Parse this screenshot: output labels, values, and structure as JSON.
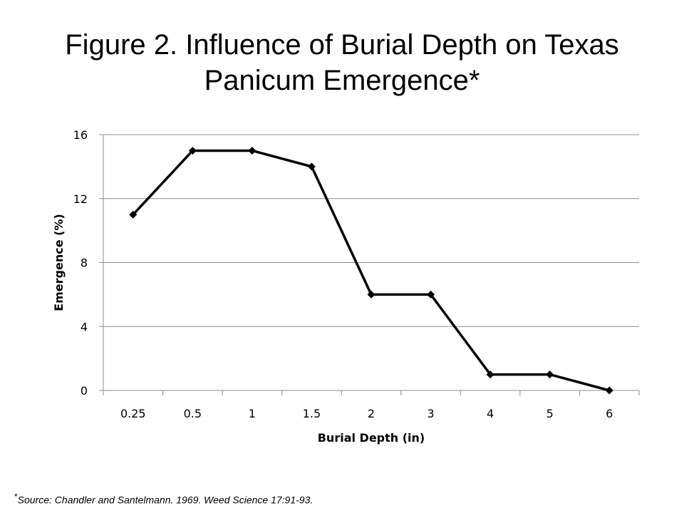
{
  "chart_data": {
    "type": "line",
    "title_line1": "Figure 2. Influence of Burial Depth on Texas",
    "title_line2": "Panicum Emergence*",
    "categories": [
      "0.25",
      "0.5",
      "1",
      "1.5",
      "2",
      "3",
      "4",
      "5",
      "6"
    ],
    "values": [
      11,
      15,
      15,
      14,
      6,
      6,
      1,
      1,
      0
    ],
    "xlabel": "Burial Depth (in)",
    "ylabel": "Emergence (%)",
    "ylim": [
      0,
      16
    ],
    "yticks": [
      "0",
      "4",
      "8",
      "12",
      "16"
    ],
    "grid": "horizontal",
    "series_color": "#000000",
    "marker": "diamond"
  },
  "footnote": {
    "mark": "*",
    "text": "Source:  Chandler and Santelmann. 1969.  Weed Science 17:91-93."
  }
}
